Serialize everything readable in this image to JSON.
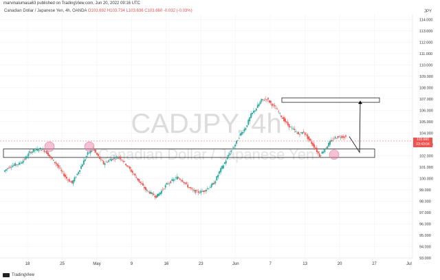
{
  "header": {
    "published": "marvinalumasa63 published on TradingView.com, Jun 20, 2022 09:16 UTC"
  },
  "legend": {
    "symbol": "Canadian Dollar / Japanese Yen, 4h, OANDA",
    "open": "O103.692",
    "high": "H103.734",
    "low": "L103.636",
    "close": "C103.660",
    "change": "-0.032 (-0.03%)"
  },
  "axis": {
    "unit": "JPY",
    "y_ticks": [
      "114.000",
      "113.000",
      "112.000",
      "111.000",
      "110.000",
      "109.000",
      "108.000",
      "107.000",
      "106.000",
      "105.000",
      "104.000",
      "103.000",
      "102.000",
      "101.000",
      "100.000",
      "99.000",
      "98.000",
      "97.000",
      "96.000",
      "95.000",
      "94.000",
      "93.000"
    ],
    "x_ticks": [
      "18",
      "25",
      "May",
      "9",
      "16",
      "23",
      "Jun",
      "7",
      "13",
      "20",
      "27",
      "Jul"
    ]
  },
  "price_tag": {
    "price": "103.660",
    "countdown": "03:43:04"
  },
  "watermark": {
    "title": "CADJPY, 4h",
    "subtitle": "Canadian Dollar / Japanese Yen"
  },
  "brand": {
    "name": "TradingView"
  },
  "colors": {
    "up": "#26a69a",
    "down": "#ef5350",
    "grid": "#f0f3fa",
    "zone": "#222222",
    "highlight": "#e57ba2"
  },
  "chart_data": {
    "type": "candlestick",
    "ylim": [
      93,
      114.5
    ],
    "price_path": [
      [
        0,
        100.6
      ],
      [
        2,
        101.0
      ],
      [
        4,
        101.2
      ],
      [
        6,
        101.3
      ],
      [
        8,
        101.7
      ],
      [
        10,
        102.3
      ],
      [
        12,
        102.5
      ],
      [
        14,
        102.6
      ],
      [
        16,
        102.4
      ],
      [
        18,
        101.8
      ],
      [
        20,
        101.3
      ],
      [
        22,
        100.6
      ],
      [
        24,
        100.0
      ],
      [
        26,
        99.6
      ],
      [
        28,
        100.4
      ],
      [
        30,
        101.3
      ],
      [
        32,
        102.2
      ],
      [
        34,
        102.6
      ],
      [
        36,
        101.9
      ],
      [
        38,
        101.3
      ],
      [
        40,
        101.6
      ],
      [
        42,
        101.8
      ],
      [
        44,
        101.9
      ],
      [
        46,
        101.4
      ],
      [
        48,
        100.8
      ],
      [
        50,
        100.2
      ],
      [
        52,
        99.6
      ],
      [
        54,
        99.0
      ],
      [
        56,
        98.7
      ],
      [
        58,
        98.4
      ],
      [
        60,
        98.9
      ],
      [
        62,
        99.5
      ],
      [
        64,
        99.8
      ],
      [
        66,
        100.1
      ],
      [
        68,
        99.8
      ],
      [
        70,
        99.3
      ],
      [
        72,
        98.9
      ],
      [
        74,
        98.8
      ],
      [
        76,
        98.9
      ],
      [
        78,
        99.2
      ],
      [
        80,
        99.6
      ],
      [
        82,
        100.6
      ],
      [
        84,
        101.4
      ],
      [
        86,
        102.3
      ],
      [
        88,
        103.0
      ],
      [
        90,
        103.9
      ],
      [
        92,
        104.5
      ],
      [
        94,
        105.6
      ],
      [
        96,
        106.2
      ],
      [
        98,
        106.9
      ],
      [
        100,
        107.0
      ],
      [
        102,
        106.5
      ],
      [
        104,
        106.0
      ],
      [
        106,
        105.3
      ],
      [
        108,
        104.7
      ],
      [
        110,
        104.3
      ],
      [
        112,
        103.9
      ],
      [
        114,
        104.1
      ],
      [
        116,
        103.4
      ],
      [
        118,
        102.8
      ],
      [
        120,
        102.0
      ],
      [
        122,
        102.6
      ],
      [
        124,
        103.2
      ],
      [
        126,
        103.6
      ],
      [
        128,
        103.7
      ],
      [
        130,
        103.66
      ]
    ],
    "supply_zone": [
      106.7,
      107.1
    ],
    "demand_zone": [
      101.85,
      102.6
    ],
    "projection": {
      "from": 103.7,
      "down_to": 102.3,
      "up_to": 106.8
    },
    "highlights": [
      102.8,
      102.8,
      102.1
    ]
  }
}
